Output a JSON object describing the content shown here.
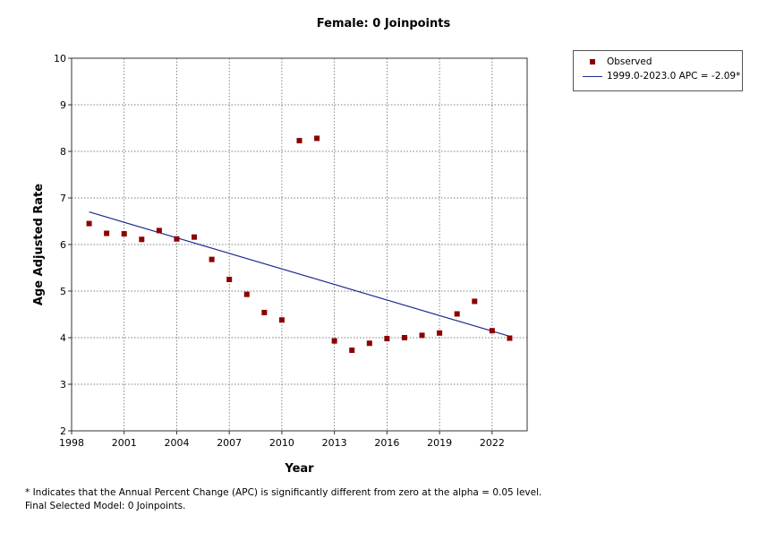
{
  "chart_data": {
    "type": "scatter",
    "title": "Female: 0 Joinpoints",
    "xlabel": "Year",
    "ylabel": "Age Adjusted Rate",
    "xlim": [
      1998,
      2024
    ],
    "ylim": [
      2,
      10
    ],
    "xticks": [
      1998,
      2001,
      2004,
      2007,
      2010,
      2013,
      2016,
      2019,
      2022
    ],
    "yticks": [
      2,
      3,
      4,
      5,
      6,
      7,
      8,
      9,
      10
    ],
    "grid": true,
    "legend_position": "top-right outside",
    "series": [
      {
        "name": "Observed",
        "kind": "points",
        "color": "#8b0000",
        "x": [
          1999,
          2000,
          2001,
          2002,
          2003,
          2004,
          2005,
          2006,
          2007,
          2008,
          2009,
          2010,
          2011,
          2012,
          2013,
          2014,
          2015,
          2016,
          2017,
          2018,
          2019,
          2020,
          2021,
          2022,
          2023
        ],
        "y": [
          6.45,
          6.24,
          6.23,
          6.11,
          6.3,
          6.12,
          6.16,
          5.68,
          5.25,
          4.93,
          4.54,
          4.38,
          8.23,
          8.28,
          3.93,
          3.73,
          3.88,
          3.98,
          4.0,
          4.05,
          4.1,
          4.51,
          4.78,
          4.15,
          3.99
        ]
      },
      {
        "name": "1999.0-2023.0 APC  = -2.09*",
        "kind": "line",
        "color": "#1f2b8f",
        "x": [
          1999,
          2023
        ],
        "y": [
          6.7,
          4.03
        ],
        "apc": -2.09
      }
    ]
  },
  "footnotes": {
    "line1": "* Indicates that the Annual Percent Change (APC) is significantly different from zero at the alpha = 0.05 level.",
    "line2": "Final Selected Model: 0 Joinpoints."
  }
}
